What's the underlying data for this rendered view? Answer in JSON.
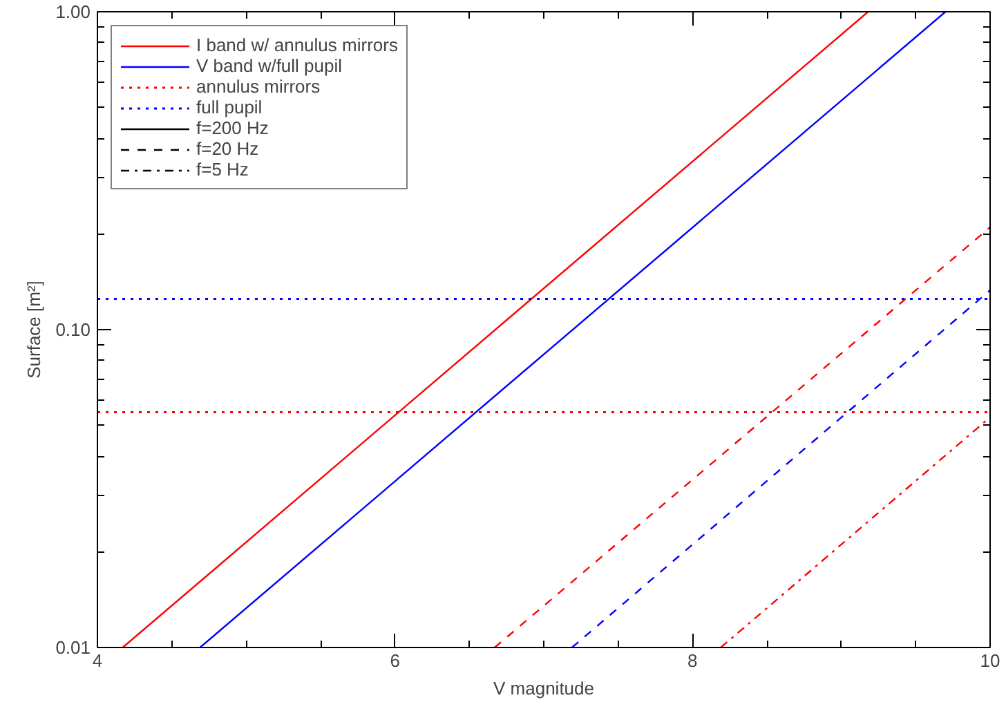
{
  "chart_data": {
    "type": "line",
    "xlabel": "V magnitude",
    "ylabel": "Surface [m²]",
    "xlim": [
      4,
      10
    ],
    "xticks": [
      4,
      6,
      8,
      10
    ],
    "ylim": [
      0.01,
      1.0
    ],
    "yticks": [
      {
        "value": 0.01,
        "label": "0.01"
      },
      {
        "value": 0.1,
        "label": "0.10"
      },
      {
        "value": 1.0,
        "label": "1.00"
      }
    ],
    "log": "y",
    "grid": false,
    "legend": "top left",
    "series": [
      {
        "name": "I band w/ annulus mirrors",
        "color": "#ff0000",
        "line_style": "solid",
        "x": [
          4.17,
          9.18
        ],
        "values": [
          0.01,
          1.0
        ]
      },
      {
        "name": "V band w/full pupil",
        "color": "#0000ff",
        "line_style": "solid",
        "x": [
          4.69,
          9.7
        ],
        "values": [
          0.01,
          1.0
        ]
      },
      {
        "name": "f=200 Hz",
        "color": "#000000",
        "line_style": "solid"
      },
      {
        "name": "f=20 Hz",
        "color": "#000000",
        "line_style": "dashed"
      },
      {
        "name": "f=5 Hz",
        "color": "#000000",
        "line_style": "dashdot"
      },
      {
        "color": "#ff0000",
        "line_style": "dashed",
        "x": [
          6.67,
          10
        ],
        "values": [
          0.01,
          0.21
        ]
      },
      {
        "color": "#0000ff",
        "line_style": "dashed",
        "x": [
          7.19,
          10
        ],
        "values": [
          0.01,
          0.133
        ]
      },
      {
        "color": "#ff0000",
        "line_style": "dashdot",
        "x": [
          8.19,
          10
        ],
        "values": [
          0.01,
          0.053
        ]
      }
    ],
    "ref_lines": [
      {
        "axis": "y",
        "value": 0.055,
        "label": "annulus mirrors",
        "color": "#ff0000",
        "line_style": "dotted"
      },
      {
        "axis": "y",
        "value": 0.125,
        "label": "full pupil",
        "color": "#0000ff",
        "line_style": "dotted"
      }
    ]
  }
}
